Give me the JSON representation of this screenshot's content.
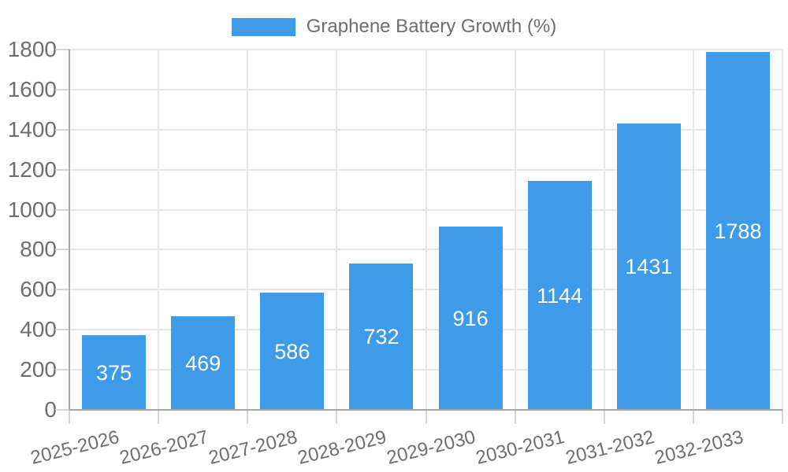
{
  "legend": {
    "label": "Graphene Battery Growth (%)"
  },
  "colors": {
    "bar": "#3E9BEA",
    "grid_line": "#E5E5E5",
    "tick_mark": "#D6D6D6",
    "axis_line": "#A6A6A6",
    "axis_label": "#6E6E6E",
    "value_label": "#FFFFFF",
    "background": "#FFFFFF"
  },
  "chart_data": {
    "type": "bar",
    "title": "Graphene Battery Growth (%)",
    "series_name": "Graphene Battery Growth (%)",
    "categories": [
      "2025-2026",
      "2026-2027",
      "2027-2028",
      "2028-2029",
      "2029-2030",
      "2030-2031",
      "2031-2032",
      "2032-2033"
    ],
    "values": [
      375,
      469,
      586,
      732,
      916,
      1144,
      1431,
      1788
    ],
    "xlabel": "",
    "ylabel": "",
    "ylim": [
      0,
      1800
    ],
    "yticks": [
      0,
      200,
      400,
      600,
      800,
      1000,
      1200,
      1400,
      1600,
      1800
    ],
    "grid": true,
    "legend_position": "top-center",
    "value_labels": "inside-center",
    "x_tick_rotation_deg": -14
  }
}
